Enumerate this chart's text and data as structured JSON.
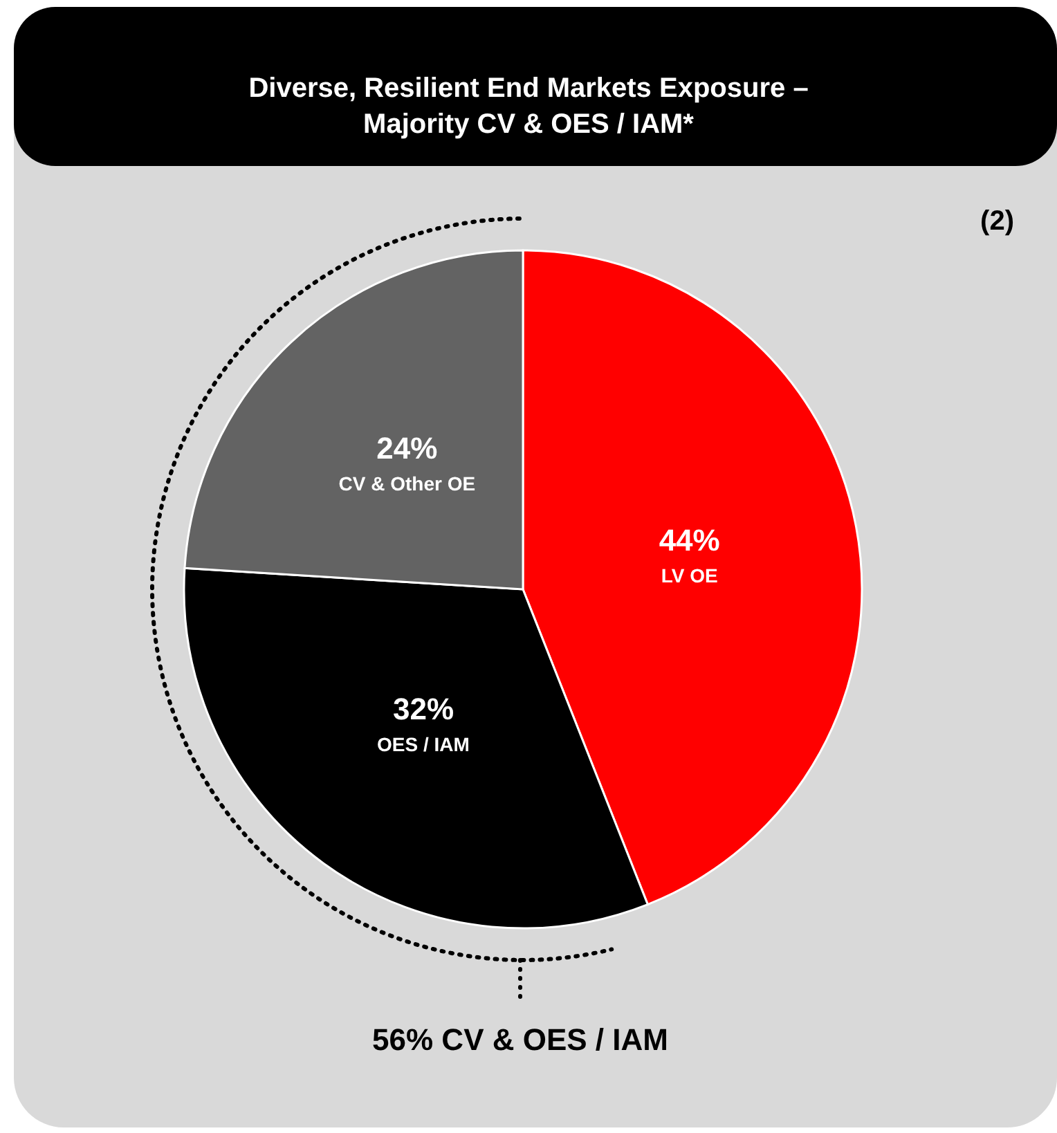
{
  "chart_data": {
    "type": "pie",
    "title": "Diverse, Resilient End Markets Exposure –\nMajority CV & OES / IAM*",
    "categories": [
      "LV OE",
      "OES / IAM",
      "CV & Other OE"
    ],
    "values": [
      44,
      32,
      24
    ],
    "colors": [
      "#ff0000",
      "#000000",
      "#636363"
    ],
    "value_labels": [
      "44%",
      "32%",
      "24%"
    ],
    "annotations": [
      "(2)",
      "56% CV & OES / IAM"
    ]
  }
}
